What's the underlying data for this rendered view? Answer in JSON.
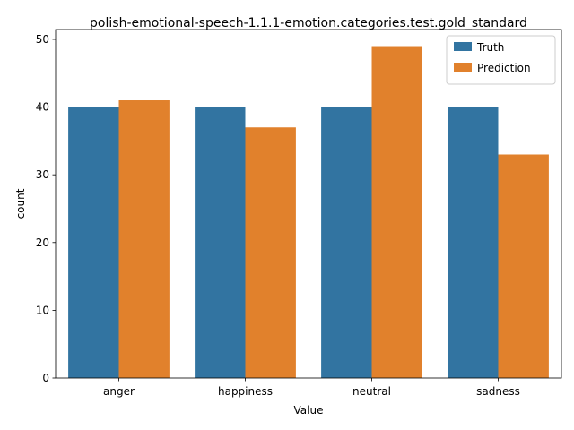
{
  "chart_data": {
    "type": "bar",
    "title": "polish-emotional-speech-1.1.1-emotion.categories.test.gold_standard",
    "xlabel": "Value",
    "ylabel": "count",
    "categories": [
      "anger",
      "happiness",
      "neutral",
      "sadness"
    ],
    "series": [
      {
        "name": "Truth",
        "values": [
          40,
          40,
          40,
          40
        ],
        "color": "#3274a1"
      },
      {
        "name": "Prediction",
        "values": [
          41,
          37,
          49,
          33
        ],
        "color": "#e1812c"
      }
    ],
    "ylim": [
      0,
      51.45
    ],
    "yticks": [
      0,
      10,
      20,
      30,
      40,
      50
    ],
    "grid": false,
    "legend_position": "top-right"
  }
}
